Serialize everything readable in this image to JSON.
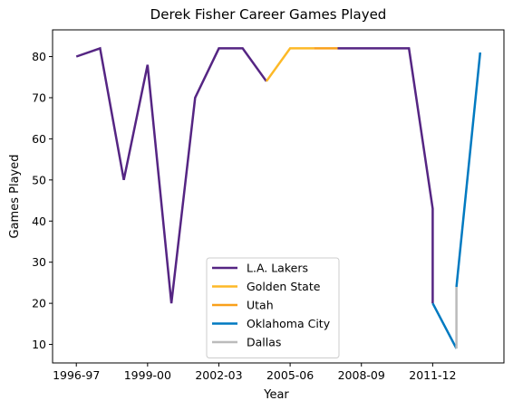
{
  "chart_data": {
    "type": "line",
    "title": "Derek Fisher Career Games Played",
    "xlabel": "Year",
    "ylabel": "Games Played",
    "x_ticks": [
      "1996-97",
      "1999-00",
      "2002-03",
      "2005-06",
      "2008-09",
      "2011-12"
    ],
    "y_ticks": [
      10,
      20,
      30,
      40,
      50,
      60,
      70,
      80
    ],
    "xlim": [
      "1995-96",
      "2014-15"
    ],
    "ylim": [
      5.5,
      86.5
    ],
    "grid": false,
    "legend_position": "bottom-center",
    "series": [
      {
        "name": "L.A. Lakers",
        "color": "#552583",
        "points": [
          {
            "x": "1996-97",
            "y": 80
          },
          {
            "x": "1997-98",
            "y": 82
          },
          {
            "x": "1998-99",
            "y": 50
          },
          {
            "x": "1999-00",
            "y": 78
          },
          {
            "x": "2000-01",
            "y": 20
          },
          {
            "x": "2001-02",
            "y": 70
          },
          {
            "x": "2002-03",
            "y": 82
          },
          {
            "x": "2003-04",
            "y": 82
          },
          {
            "x": "2004-05",
            "y": 74
          }
        ]
      },
      {
        "name": "Golden State",
        "color": "#FDB927",
        "points": [
          {
            "x": "2004-05",
            "y": 74
          },
          {
            "x": "2005-06",
            "y": 82
          },
          {
            "x": "2006-07",
            "y": 82
          }
        ]
      },
      {
        "name": "Utah",
        "color": "#F9A01B",
        "points": [
          {
            "x": "2006-07",
            "y": 82
          },
          {
            "x": "2007-08",
            "y": 82
          }
        ]
      },
      {
        "name": "L.A. Lakers",
        "color": "#552583",
        "points": [
          {
            "x": "2007-08",
            "y": 82
          },
          {
            "x": "2008-09",
            "y": 82
          },
          {
            "x": "2009-10",
            "y": 82
          },
          {
            "x": "2010-11",
            "y": 82
          },
          {
            "x": "2011-12",
            "y": 43
          },
          {
            "x": "2011-12",
            "y": 20
          }
        ]
      },
      {
        "name": "Oklahoma City",
        "color": "#007AC1",
        "points": [
          {
            "x": "2011-12",
            "y": 20
          },
          {
            "x": "2012-13",
            "y": 9
          }
        ]
      },
      {
        "name": "Dallas",
        "color": "#BBBBBB",
        "points": [
          {
            "x": "2012-13",
            "y": 9
          },
          {
            "x": "2012-13",
            "y": 24
          }
        ]
      },
      {
        "name": "Oklahoma City",
        "color": "#007AC1",
        "points": [
          {
            "x": "2012-13",
            "y": 24
          },
          {
            "x": "2013-14",
            "y": 81
          }
        ]
      }
    ],
    "legend": [
      {
        "label": "L.A. Lakers",
        "color": "#552583"
      },
      {
        "label": "Golden State",
        "color": "#FDB927"
      },
      {
        "label": "Utah",
        "color": "#F9A01B"
      },
      {
        "label": "Oklahoma City",
        "color": "#007AC1"
      },
      {
        "label": "Dallas",
        "color": "#BBBBBB"
      }
    ]
  }
}
